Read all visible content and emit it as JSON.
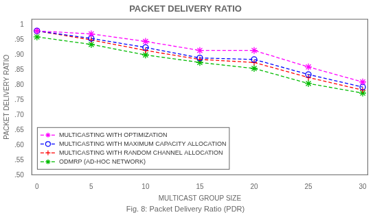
{
  "chart_data": {
    "type": "line",
    "title": "PACKET DELIVERY RATIO",
    "x_label": "MULTICAST GROUP SIZE",
    "y_label": "PACKET DELIVERY RATIO",
    "caption": "Fig. 8: Packet Delivery Ratio (PDR)",
    "x": [
      0,
      5,
      10,
      15,
      20,
      25,
      30
    ],
    "series": [
      {
        "name": "MULTICASTING WITH OPTIMIZATION",
        "color": "#ff00ff",
        "marker": "star",
        "line_style": "dashed",
        "values": [
          0.98,
          0.97,
          0.945,
          0.915,
          0.915,
          0.86,
          0.81
        ]
      },
      {
        "name": "MULTICASTING WITH MAXIMUM CAPACITY ALLOCATION",
        "color": "#0000ff",
        "marker": "circle",
        "line_style": "dashed",
        "values": [
          0.98,
          0.955,
          0.925,
          0.89,
          0.885,
          0.835,
          0.793
        ]
      },
      {
        "name": "MULTICASTING WITH RANDOM CHANNEL ALLOCATION",
        "color": "#ff0000",
        "marker": "plus",
        "line_style": "dashed",
        "values": [
          0.98,
          0.95,
          0.915,
          0.885,
          0.875,
          0.825,
          0.783
        ]
      },
      {
        "name": "ODMRP (AD-HOC NETWORK)",
        "color": "#00bb00",
        "marker": "star",
        "line_style": "dashed",
        "values": [
          0.96,
          0.935,
          0.9,
          0.875,
          0.855,
          0.805,
          0.773
        ]
      }
    ],
    "xlim": [
      -0.5,
      30.5
    ],
    "ylim": [
      0.5,
      1.02
    ],
    "xticks": [
      0,
      5,
      10,
      15,
      20,
      25,
      30
    ],
    "yticks": [
      {
        "value": 0.5,
        "label": ".50"
      },
      {
        "value": 0.55,
        "label": ".55"
      },
      {
        "value": 0.6,
        "label": ".60"
      },
      {
        "value": 0.65,
        "label": ".65"
      },
      {
        "value": 0.7,
        "label": ".70"
      },
      {
        "value": 0.75,
        "label": ".75"
      },
      {
        "value": 0.8,
        "label": ".80"
      },
      {
        "value": 0.85,
        "label": ".85"
      },
      {
        "value": 0.9,
        "label": ".90"
      },
      {
        "value": 0.95,
        "label": ".95"
      },
      1
    ],
    "grid": false,
    "legend": "lower left"
  }
}
